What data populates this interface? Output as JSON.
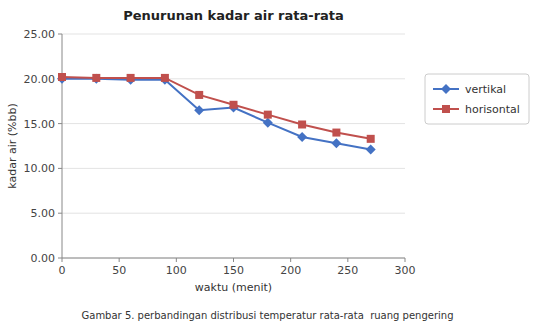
{
  "chart_data": {
    "type": "line",
    "title": "Penurunan kadar air rata-rata",
    "x_label": "waktu (menit)",
    "y_label": "kadar air (%bb)",
    "caption": "Gambar 5. perbandingan distribusi temperatur rata-rata  ruang pengering",
    "x": [
      0,
      30,
      60,
      90,
      120,
      150,
      180,
      210,
      240,
      270
    ],
    "series": [
      {
        "name": "vertikal",
        "color": "#4472C4",
        "marker": "diamond",
        "values": [
          20.0,
          20.0,
          19.9,
          19.9,
          16.5,
          16.8,
          15.1,
          13.5,
          12.8,
          12.1
        ]
      },
      {
        "name": "horisontal",
        "color": "#C0504D",
        "marker": "square",
        "values": [
          20.2,
          20.1,
          20.1,
          20.1,
          18.2,
          17.1,
          16.0,
          14.9,
          14.0,
          13.3
        ]
      }
    ],
    "xlim": [
      0,
      300
    ],
    "ylim": [
      0.0,
      25.0
    ],
    "xticks": [
      0,
      50,
      100,
      150,
      200,
      250,
      300
    ],
    "yticks": [
      {
        "value": 0.0,
        "label": "0.00"
      },
      {
        "value": 5.0,
        "label": "5.00"
      },
      {
        "value": 10.0,
        "label": "10.00"
      },
      {
        "value": 15.0,
        "label": "15.00"
      },
      {
        "value": 20.0,
        "label": "20.00"
      },
      {
        "value": 25.0,
        "label": "25.00"
      }
    ],
    "grid": true,
    "legend": "right"
  }
}
